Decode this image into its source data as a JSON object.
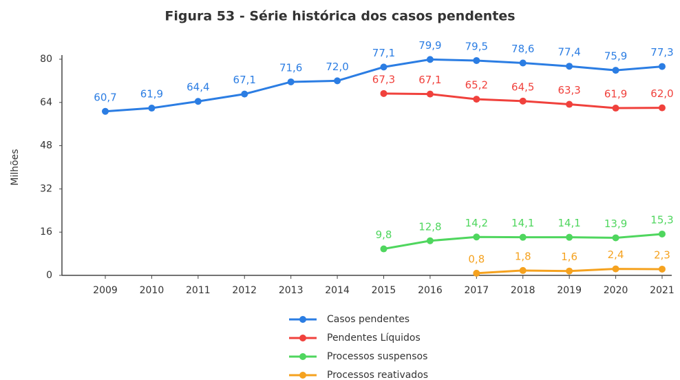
{
  "chart_data": {
    "type": "line",
    "title": "Figura 53 - Série histórica dos casos pendentes",
    "y_label": "Milhões",
    "categories": [
      "2009",
      "2010",
      "2011",
      "2012",
      "2013",
      "2014",
      "2015",
      "2016",
      "2017",
      "2018",
      "2019",
      "2020",
      "2021"
    ],
    "ylim": [
      0,
      80
    ],
    "yticks": [
      0,
      16,
      32,
      48,
      64,
      80
    ],
    "grid": false,
    "legend": "bottom",
    "series": [
      {
        "name": "Casos pendentes",
        "color": "#2b7de3",
        "values": [
          60.7,
          61.9,
          64.4,
          67.1,
          71.6,
          72.0,
          77.1,
          79.9,
          79.5,
          78.6,
          77.4,
          75.9,
          77.3
        ],
        "value_labels": [
          "60,7",
          "61,9",
          "64,4",
          "67,1",
          "71,6",
          "72,0",
          "77,1",
          "79,9",
          "79,5",
          "78,6",
          "77,4",
          "75,9",
          "77,3"
        ]
      },
      {
        "name": "Pendentes Líquidos",
        "color": "#f0413c",
        "values": [
          null,
          null,
          null,
          null,
          null,
          null,
          67.3,
          67.1,
          65.2,
          64.5,
          63.3,
          61.9,
          62.0
        ],
        "value_labels": [
          null,
          null,
          null,
          null,
          null,
          null,
          "67,3",
          "67,1",
          "65,2",
          "64,5",
          "63,3",
          "61,9",
          "62,0"
        ]
      },
      {
        "name": "Processos suspensos",
        "color": "#4fd65e",
        "values": [
          null,
          null,
          null,
          null,
          null,
          null,
          9.8,
          12.8,
          14.2,
          14.1,
          14.1,
          13.9,
          15.3
        ],
        "value_labels": [
          null,
          null,
          null,
          null,
          null,
          null,
          "9,8",
          "12,8",
          "14,2",
          "14,1",
          "14,1",
          "13,9",
          "15,3"
        ]
      },
      {
        "name": "Processos reativados",
        "color": "#f5a21f",
        "values": [
          null,
          null,
          null,
          null,
          null,
          null,
          null,
          null,
          0.8,
          1.8,
          1.6,
          2.4,
          2.3
        ],
        "value_labels": [
          null,
          null,
          null,
          null,
          null,
          null,
          null,
          null,
          "0,8",
          "1,8",
          "1,6",
          "2,4",
          "2,3"
        ]
      }
    ]
  }
}
